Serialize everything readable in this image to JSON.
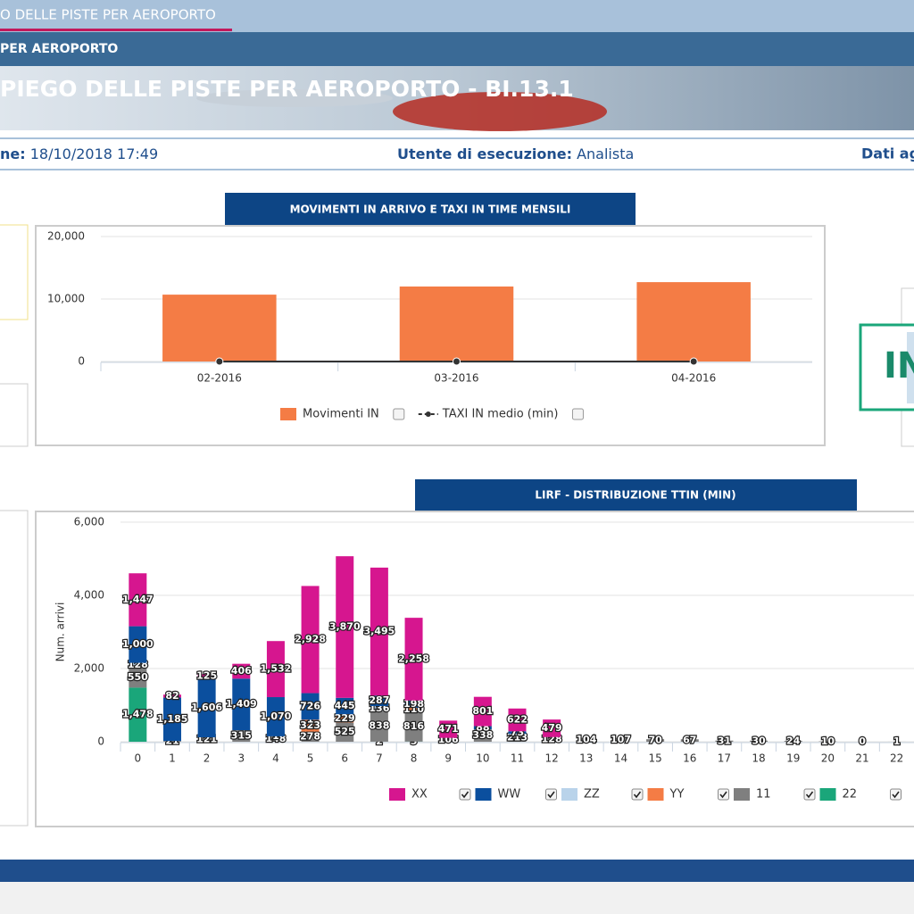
{
  "header": {
    "tab": "O DELLE PISTE PER AEROPORTO",
    "breadcrumb": "PER AEROPORTO",
    "title": "PIEGO DELLE PISTE PER AEROPORTO - BI.13.1"
  },
  "info": {
    "date_label": "ne:",
    "date": "18/10/2018 17:49",
    "user_label": "Utente di esecuzione:",
    "user": "Analista",
    "data_label": "Dati ag"
  },
  "side_label": "IN",
  "chart_data": [
    {
      "type": "bar",
      "title": "MOVIMENTI IN ARRIVO E TAXI IN TIME MENSILI",
      "categories": [
        "02-2016",
        "03-2016",
        "04-2016"
      ],
      "series": [
        {
          "name": "Movimenti IN",
          "type": "bar",
          "color": "#f47c45",
          "values": [
            10700,
            12000,
            12700
          ]
        },
        {
          "name": "TAXI IN medio (min)",
          "type": "line",
          "color": "#333333",
          "values": [
            0,
            0,
            0
          ]
        }
      ],
      "ylim": [
        0,
        20000
      ],
      "yticks": [
        0,
        {
          "value": 10000,
          "label": "10,000"
        },
        {
          "value": 20000,
          "label": "20,000"
        }
      ],
      "grid": true
    },
    {
      "type": "stacked_bar",
      "title": "LIRF - DISTRIBUZIONE TTIN (MIN)",
      "y_label": "Num. arrivi",
      "categories": [
        "0",
        "1",
        "2",
        "3",
        "4",
        "5",
        "6",
        "7",
        "8",
        "9",
        "10",
        "11",
        "12",
        "13",
        "14",
        "15",
        "16",
        "17",
        "18",
        "19",
        "20",
        "21",
        "22"
      ],
      "series": [
        {
          "name": "22",
          "color": "#1aa67a",
          "values": [
            1478,
            null,
            null,
            null,
            null,
            null,
            null,
            2,
            5,
            null,
            null,
            null,
            null,
            null,
            null,
            null,
            null,
            null,
            null,
            null,
            null,
            null,
            null
          ],
          "value_labels": [
            "1,478",
            null,
            null,
            null,
            null,
            null,
            null,
            "2",
            "5",
            null,
            null,
            null,
            null,
            null,
            null,
            null,
            null,
            null,
            null,
            null,
            null,
            null,
            null
          ]
        },
        {
          "name": "11",
          "color": "#7f7f7f",
          "values": [
            550,
            21,
            121,
            315,
            148,
            278,
            525,
            838,
            816,
            106,
            338,
            213,
            128,
            104,
            107,
            70,
            67,
            31,
            30,
            24,
            10,
            0,
            1
          ],
          "value_labels": [
            "550",
            "21",
            "121",
            "315",
            "148",
            "278",
            "525",
            "838",
            "816",
            "106",
            "338",
            "213",
            "128",
            "104",
            "107",
            "70",
            "67",
            "31",
            "30",
            "24",
            "10",
            "0",
            "1"
          ]
        },
        {
          "name": "YY",
          "color": "#f47c45",
          "values": [
            null,
            null,
            null,
            null,
            1,
            323,
            229,
            null,
            110,
            null,
            null,
            null,
            null,
            null,
            null,
            null,
            null,
            null,
            null,
            null,
            null,
            null,
            null
          ],
          "value_labels": [
            null,
            null,
            null,
            null,
            "1",
            "323",
            "229",
            null,
            "110",
            null,
            null,
            null,
            null,
            null,
            null,
            null,
            null,
            null,
            null,
            null,
            null,
            null,
            null
          ]
        },
        {
          "name": "ZZ",
          "color": "#b9d3ea",
          "values": [
            128,
            null,
            null,
            null,
            null,
            1,
            null,
            136,
            null,
            null,
            null,
            null,
            null,
            null,
            null,
            null,
            null,
            null,
            null,
            null,
            null,
            null,
            null
          ],
          "value_labels": [
            "128",
            null,
            null,
            null,
            null,
            "1",
            null,
            "136",
            null,
            null,
            null,
            null,
            null,
            null,
            null,
            null,
            null,
            null,
            null,
            null,
            null,
            null,
            null
          ]
        },
        {
          "name": "WW",
          "color": "#0b4f9e",
          "values": [
            1000,
            1185,
            1606,
            1409,
            1070,
            726,
            445,
            287,
            198,
            null,
            88,
            73,
            null,
            null,
            null,
            null,
            null,
            null,
            null,
            null,
            null,
            null,
            null
          ],
          "value_labels": [
            "1,000",
            "1,185",
            "1,606",
            "1,409",
            "1,070",
            "726",
            "445",
            "287",
            "198",
            null,
            "88",
            "73",
            null,
            null,
            null,
            null,
            null,
            null,
            null,
            null,
            null,
            null,
            null
          ]
        },
        {
          "name": "XX",
          "color": "#d6168f",
          "values": [
            1447,
            82,
            125,
            406,
            1532,
            2928,
            3870,
            3495,
            2258,
            471,
            801,
            622,
            479,
            null,
            null,
            null,
            null,
            null,
            null,
            null,
            null,
            null,
            null
          ],
          "value_labels": [
            "1,447",
            "82",
            "125",
            "406",
            "1,532",
            "2,928",
            "3,870",
            "3,495",
            "2,258",
            "471",
            "801",
            "622",
            "479",
            null,
            null,
            null,
            null,
            null,
            null,
            null,
            null,
            null,
            null
          ]
        }
      ],
      "legend_order": [
        5,
        4,
        3,
        2,
        1,
        0
      ],
      "ylim": [
        0,
        6000
      ],
      "yticks": [
        0,
        {
          "value": 2000,
          "label": "2,000"
        },
        {
          "value": 4000,
          "label": "4,000"
        },
        {
          "value": 6000,
          "label": "6,000"
        }
      ],
      "grid": true
    }
  ]
}
